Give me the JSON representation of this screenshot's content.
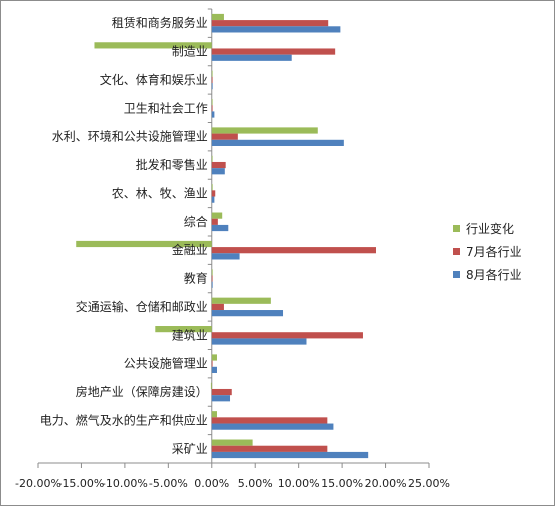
{
  "chart_data": {
    "type": "bar",
    "orientation": "horizontal",
    "categories": [
      "采矿业",
      "电力、燃气及水的生产和供应业",
      "房地产业（保障房建设）",
      "公共设施管理业",
      "建筑业",
      "交通运输、仓储和邮政业",
      "教育",
      "金融业",
      "综合",
      "农、林、牧、渔业",
      "批发和零售业",
      "水利、环境和公共设施管理业",
      "卫生和社会工作",
      "文化、体育和娱乐业",
      "制造业",
      "租赁和商务服务业"
    ],
    "series": [
      {
        "name": "行业变化",
        "color": "#9bbb59",
        "values": [
          4.7,
          0.6,
          -0.1,
          0.6,
          -6.5,
          6.8,
          0.1,
          -15.6,
          1.2,
          0.1,
          0.0,
          12.2,
          0.0,
          0.0,
          -13.5,
          1.4
        ]
      },
      {
        "name": "7月各行业",
        "color": "#c0504d",
        "values": [
          13.3,
          13.3,
          2.3,
          0.0,
          17.4,
          1.4,
          0.0,
          18.9,
          0.7,
          0.4,
          1.6,
          3.0,
          0.0,
          0.0,
          14.2,
          13.4
        ]
      },
      {
        "name": "8月各行业",
        "color": "#4f81bd",
        "values": [
          18.0,
          14.0,
          2.1,
          0.6,
          10.9,
          8.2,
          0.1,
          3.2,
          1.9,
          0.3,
          1.5,
          15.2,
          0.3,
          0.1,
          9.2,
          14.8
        ]
      }
    ],
    "xlim": [
      -20,
      25
    ],
    "xticks": [
      "-20.00%",
      "-15.00%",
      "-10.00%",
      "-5.00%",
      "0.00%",
      "5.00%",
      "10.00%",
      "15.00%",
      "20.00%",
      "25.00%"
    ],
    "grid": false,
    "legend_position": "right"
  }
}
